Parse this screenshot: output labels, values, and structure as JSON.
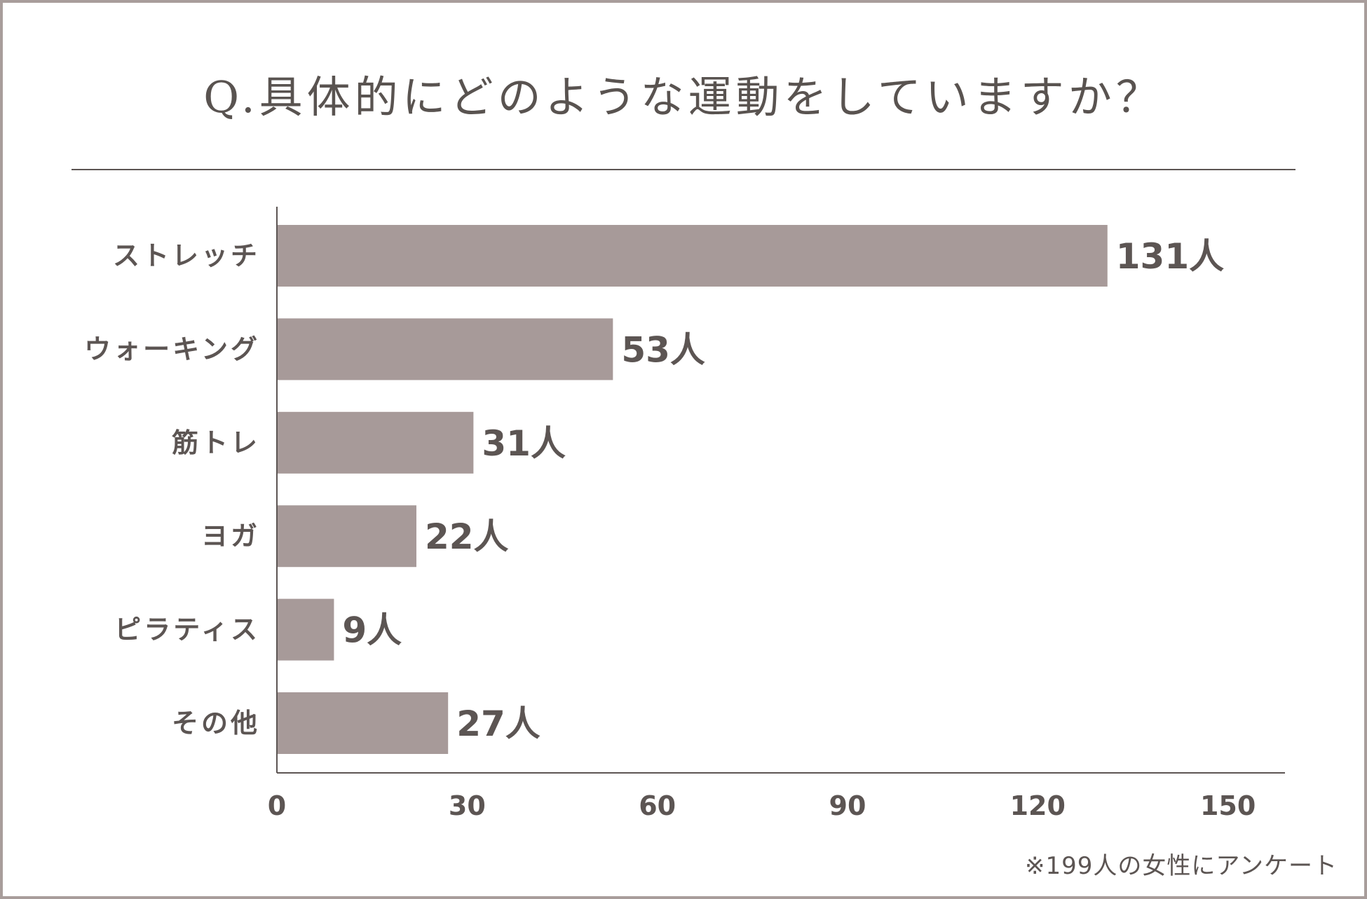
{
  "title": "Q.具体的にどのような運動をしていますか？",
  "footnote": "※199人の女性にアンケート",
  "colors": {
    "bar": "#a79a99",
    "text": "#5c5553",
    "axis": "#5c5553",
    "border": "#a89d9b"
  },
  "chart_data": {
    "type": "bar",
    "orientation": "horizontal",
    "categories": [
      "ストレッチ",
      "ウォーキング",
      "筋トレ",
      "ヨガ",
      "ピラティス",
      "その他"
    ],
    "values": [
      131,
      53,
      31,
      22,
      9,
      27
    ],
    "value_labels": [
      "131人",
      "53人",
      "31人",
      "22人",
      "9人",
      "27人"
    ],
    "xlim": [
      0,
      159
    ],
    "xticks": [
      0,
      30,
      60,
      90,
      120,
      150
    ],
    "xtick_labels": [
      "0",
      "30",
      "60",
      "90",
      "120",
      "150"
    ],
    "grid": false,
    "legend": "none"
  }
}
